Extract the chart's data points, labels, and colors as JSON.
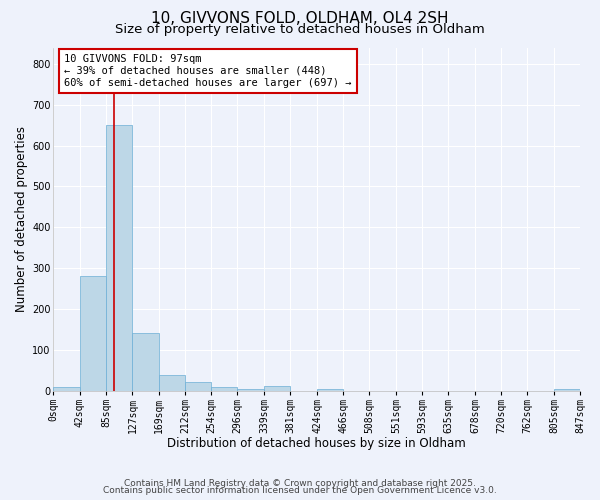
{
  "title": "10, GIVVONS FOLD, OLDHAM, OL4 2SH",
  "subtitle": "Size of property relative to detached houses in Oldham",
  "xlabel": "Distribution of detached houses by size in Oldham",
  "ylabel": "Number of detached properties",
  "bar_color": "#bdd7e7",
  "bar_edgecolor": "#6baed6",
  "background_color": "#eef2fb",
  "grid_color": "#ffffff",
  "vline_x": 97,
  "vline_color": "#cc0000",
  "bin_edges": [
    0,
    42,
    85,
    127,
    169,
    212,
    254,
    296,
    339,
    381,
    424,
    466,
    508,
    551,
    593,
    635,
    678,
    720,
    762,
    805,
    847
  ],
  "bin_labels": [
    "0sqm",
    "42sqm",
    "85sqm",
    "127sqm",
    "169sqm",
    "212sqm",
    "254sqm",
    "296sqm",
    "339sqm",
    "381sqm",
    "424sqm",
    "466sqm",
    "508sqm",
    "551sqm",
    "593sqm",
    "635sqm",
    "678sqm",
    "720sqm",
    "762sqm",
    "805sqm",
    "847sqm"
  ],
  "bar_heights": [
    8,
    280,
    650,
    142,
    38,
    20,
    10,
    5,
    12,
    0,
    3,
    0,
    0,
    0,
    0,
    0,
    0,
    0,
    0,
    3
  ],
  "ylim": [
    0,
    840
  ],
  "yticks": [
    0,
    100,
    200,
    300,
    400,
    500,
    600,
    700,
    800
  ],
  "annotation_title": "10 GIVVONS FOLD: 97sqm",
  "annotation_line1": "← 39% of detached houses are smaller (448)",
  "annotation_line2": "60% of semi-detached houses are larger (697) →",
  "annotation_box_edgecolor": "#cc0000",
  "footer1": "Contains HM Land Registry data © Crown copyright and database right 2025.",
  "footer2": "Contains public sector information licensed under the Open Government Licence v3.0.",
  "title_fontsize": 11,
  "subtitle_fontsize": 9.5,
  "axis_label_fontsize": 8.5,
  "tick_fontsize": 7,
  "annotation_fontsize": 7.5,
  "footer_fontsize": 6.5
}
